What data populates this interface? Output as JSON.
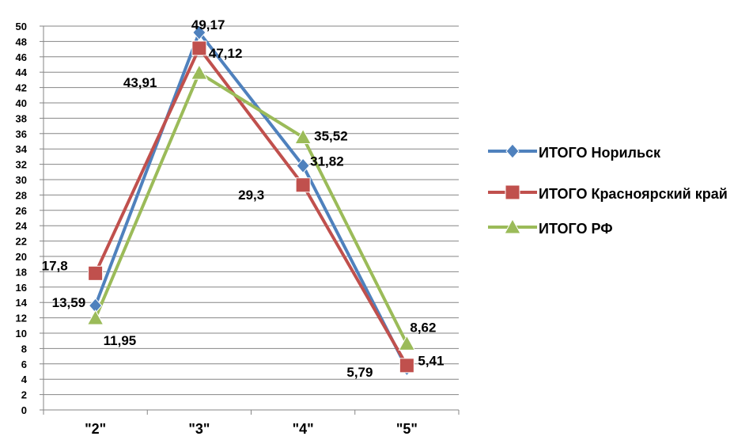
{
  "chart_data": {
    "type": "line",
    "categories": [
      "\"2\"",
      "\"3\"",
      "\"4\"",
      "\"5\""
    ],
    "ylim": [
      0,
      50
    ],
    "ytick_step": 2,
    "grid": true,
    "legend_position": "right",
    "series": [
      {
        "name": "ИТОГО Норильск",
        "values": [
          13.59,
          49.17,
          31.82,
          5.41
        ],
        "labels": [
          "13,59",
          "49,17",
          "31,82",
          "5,41"
        ],
        "color": "#4F81BD",
        "marker": "diamond"
      },
      {
        "name": "ИТОГО Красноярский край",
        "values": [
          17.8,
          47.12,
          29.3,
          5.79
        ],
        "labels": [
          "17,8",
          "47,12",
          "29,3",
          "5,79"
        ],
        "color": "#C0504D",
        "marker": "square"
      },
      {
        "name": "ИТОГО РФ",
        "values": [
          11.95,
          43.91,
          35.52,
          8.62
        ],
        "labels": [
          "11,95",
          "43,91",
          "35,52",
          "8,62"
        ],
        "color": "#9BBB59",
        "marker": "triangle"
      }
    ]
  }
}
